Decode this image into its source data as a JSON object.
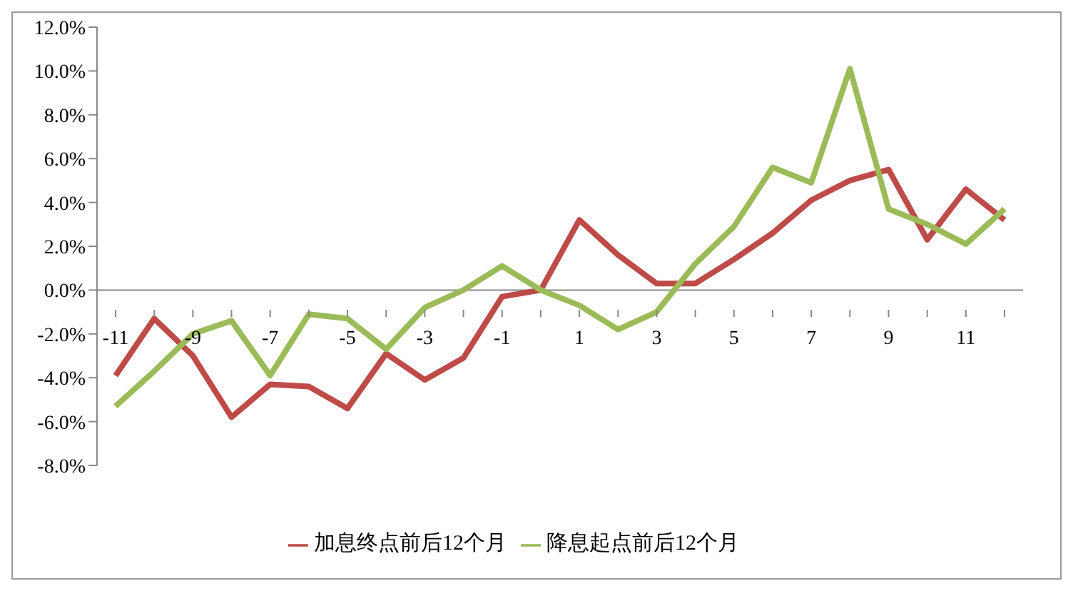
{
  "chart_data": {
    "type": "line",
    "categories": [
      "-11",
      null,
      "-9",
      null,
      "-7",
      null,
      "-5",
      null,
      "-3",
      null,
      "-1",
      null,
      "1",
      null,
      "3",
      null,
      "5",
      null,
      "7",
      null,
      "9",
      null,
      "11",
      null
    ],
    "series": [
      {
        "name": "加息终点前后12个月",
        "color": "#be4b48",
        "values": [
          -3.9,
          -1.3,
          -3.0,
          -5.8,
          -4.3,
          -4.4,
          -5.4,
          -2.9,
          -4.1,
          -3.1,
          -0.3,
          0.0,
          3.2,
          1.6,
          0.3,
          0.3,
          1.4,
          2.6,
          4.1,
          5.0,
          5.5,
          2.3,
          4.6,
          3.2
        ]
      },
      {
        "name": "降息起点前后12个月",
        "color": "#9bbb59",
        "values": [
          -5.3,
          -3.7,
          -2.0,
          -1.4,
          -3.9,
          -1.1,
          -1.3,
          -2.7,
          -0.8,
          0.0,
          1.1,
          0.0,
          -0.7,
          -1.8,
          -1.0,
          1.2,
          2.9,
          5.6,
          4.9,
          10.1,
          3.7,
          3.0,
          2.1,
          3.7
        ]
      }
    ],
    "ylim": [
      -8,
      12
    ],
    "yticks": [
      {
        "value": -8,
        "label": "-8.0%"
      },
      {
        "value": -6,
        "label": "-6.0%"
      },
      {
        "value": -4,
        "label": "-4.0%"
      },
      {
        "value": -2,
        "label": "-2.0%"
      },
      {
        "value": 0,
        "label": "0.0%"
      },
      {
        "value": 2,
        "label": "2.0%"
      },
      {
        "value": 4,
        "label": "4.0%"
      },
      {
        "value": 6,
        "label": "6.0%"
      },
      {
        "value": 8,
        "label": "8.0%"
      },
      {
        "value": 10,
        "label": "10.0%"
      },
      {
        "value": 12,
        "label": "12.0%"
      }
    ],
    "grid": false,
    "legend": "bottom",
    "marker": "none",
    "line_style": "solid"
  }
}
